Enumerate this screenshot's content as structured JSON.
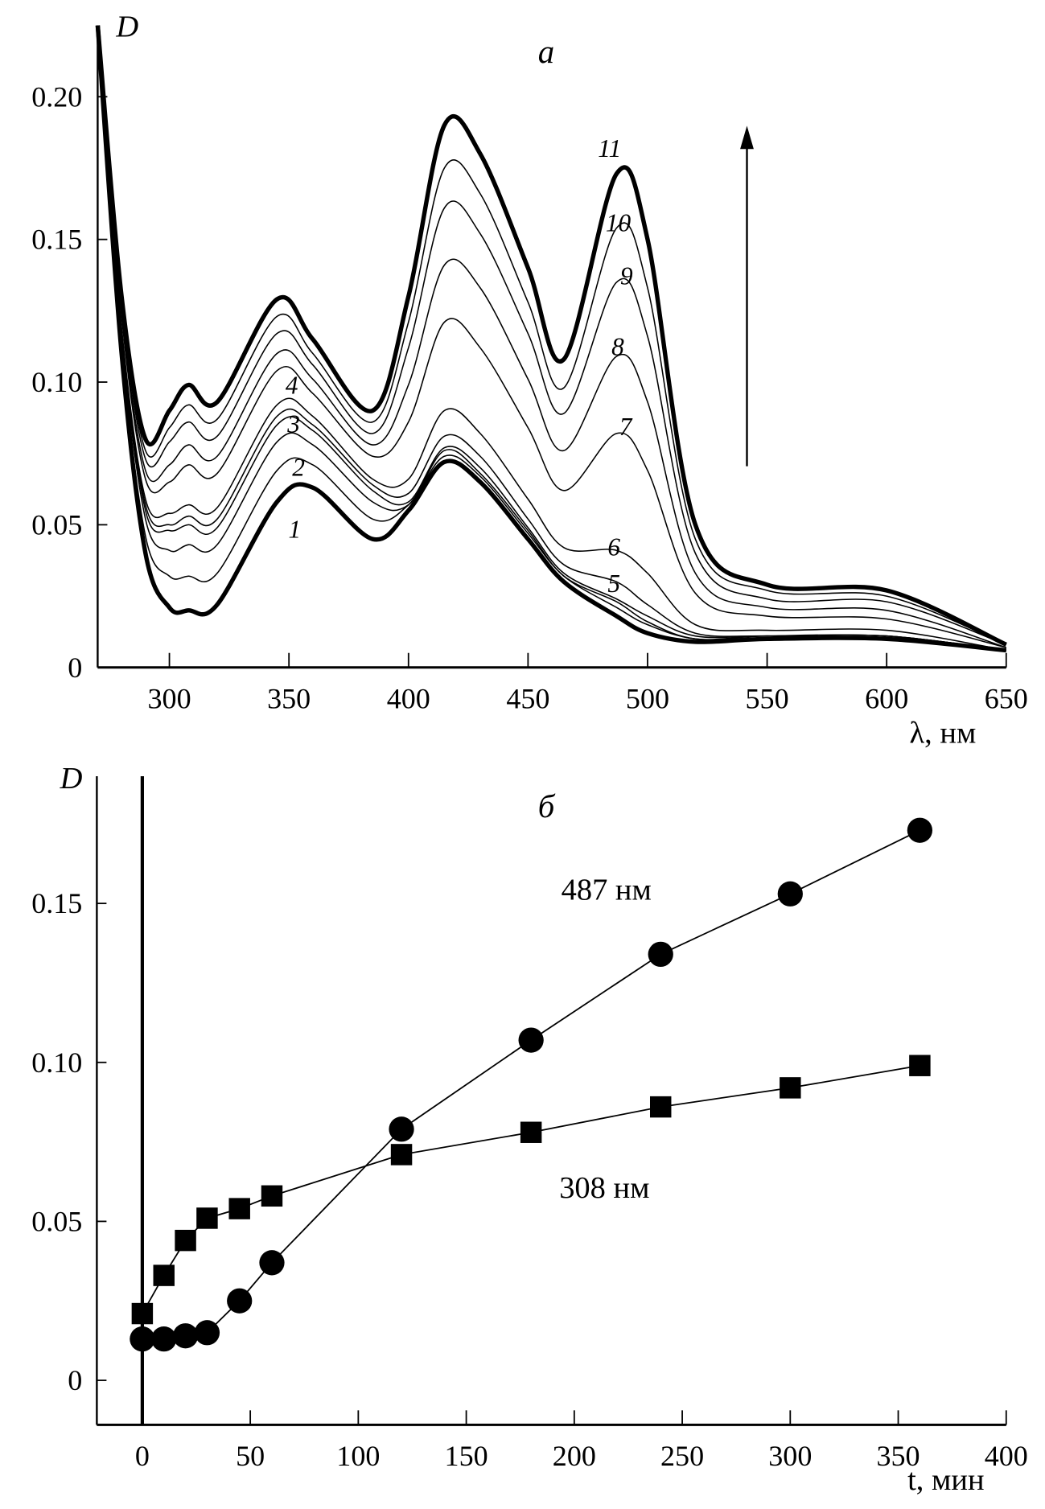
{
  "chart_data": [
    {
      "type": "line",
      "panel_label": "а",
      "ylabel": "D",
      "xlabel": "λ, нм",
      "xlim": [
        270,
        650
      ],
      "ylim": [
        0,
        0.225
      ],
      "x_ticks": [
        "300",
        "350",
        "400",
        "450",
        "500",
        "550",
        "600",
        "650"
      ],
      "y_ticks": [
        "0",
        "0.05",
        "0.10",
        "0.15",
        "0.20"
      ],
      "grid": false,
      "arrow": "up",
      "x": [
        270,
        280,
        290,
        300,
        308,
        320,
        345,
        360,
        385,
        400,
        415,
        430,
        450,
        465,
        487,
        500,
        520,
        550,
        600,
        650
      ],
      "series": [
        {
          "name": "1",
          "values": [
            0.225,
            0.11,
            0.04,
            0.021,
            0.02,
            0.022,
            0.058,
            0.063,
            0.045,
            0.055,
            0.072,
            0.065,
            0.045,
            0.03,
            0.018,
            0.012,
            0.009,
            0.01,
            0.01,
            0.006
          ]
        },
        {
          "name": "2",
          "values": [
            0.225,
            0.113,
            0.046,
            0.032,
            0.032,
            0.033,
            0.069,
            0.071,
            0.052,
            0.057,
            0.074,
            0.067,
            0.047,
            0.032,
            0.021,
            0.015,
            0.01,
            0.01,
            0.01,
            0.006
          ]
        },
        {
          "name": "3",
          "values": [
            0.225,
            0.116,
            0.052,
            0.041,
            0.043,
            0.043,
            0.079,
            0.078,
            0.058,
            0.057,
            0.076,
            0.068,
            0.048,
            0.032,
            0.023,
            0.016,
            0.01,
            0.011,
            0.011,
            0.006
          ]
        },
        {
          "name": "4",
          "values": [
            0.225,
            0.118,
            0.055,
            0.048,
            0.05,
            0.049,
            0.085,
            0.083,
            0.062,
            0.058,
            0.077,
            0.07,
            0.049,
            0.033,
            0.024,
            0.018,
            0.011,
            0.011,
            0.011,
            0.006
          ]
        },
        {
          "name": "5",
          "values": [
            0.225,
            0.118,
            0.057,
            0.05,
            0.053,
            0.052,
            0.088,
            0.085,
            0.064,
            0.061,
            0.081,
            0.074,
            0.052,
            0.036,
            0.03,
            0.022,
            0.012,
            0.011,
            0.011,
            0.006
          ]
        },
        {
          "name": "6",
          "values": [
            0.225,
            0.119,
            0.059,
            0.054,
            0.057,
            0.056,
            0.092,
            0.088,
            0.066,
            0.066,
            0.09,
            0.082,
            0.059,
            0.042,
            0.041,
            0.033,
            0.015,
            0.013,
            0.013,
            0.006
          ]
        },
        {
          "name": "7",
          "values": [
            0.225,
            0.123,
            0.066,
            0.065,
            0.071,
            0.068,
            0.104,
            0.096,
            0.074,
            0.086,
            0.121,
            0.112,
            0.084,
            0.062,
            0.082,
            0.069,
            0.026,
            0.018,
            0.017,
            0.007
          ]
        },
        {
          "name": "8",
          "values": [
            0.225,
            0.125,
            0.069,
            0.071,
            0.078,
            0.074,
            0.11,
            0.101,
            0.078,
            0.099,
            0.141,
            0.133,
            0.101,
            0.076,
            0.109,
            0.093,
            0.033,
            0.021,
            0.02,
            0.007
          ]
        },
        {
          "name": "9",
          "values": [
            0.225,
            0.127,
            0.073,
            0.079,
            0.086,
            0.081,
            0.117,
            0.106,
            0.082,
            0.112,
            0.161,
            0.152,
            0.117,
            0.089,
            0.135,
            0.116,
            0.04,
            0.024,
            0.023,
            0.008
          ]
        },
        {
          "name": "10",
          "values": [
            0.225,
            0.128,
            0.076,
            0.084,
            0.092,
            0.087,
            0.123,
            0.11,
            0.086,
            0.121,
            0.175,
            0.166,
            0.128,
            0.098,
            0.154,
            0.133,
            0.045,
            0.027,
            0.025,
            0.008
          ]
        },
        {
          "name": "11",
          "values": [
            0.225,
            0.13,
            0.08,
            0.09,
            0.099,
            0.093,
            0.129,
            0.115,
            0.09,
            0.13,
            0.19,
            0.18,
            0.14,
            0.108,
            0.173,
            0.15,
            0.05,
            0.029,
            0.027,
            0.008
          ]
        }
      ]
    },
    {
      "type": "scatter",
      "panel_label": "б",
      "ylabel": "D",
      "xlabel": "t, мин",
      "xlim": [
        -21,
        400
      ],
      "ylim": [
        -0.014,
        0.19
      ],
      "x_ticks": [
        "0",
        "50",
        "100",
        "150",
        "200",
        "250",
        "300",
        "350",
        "400"
      ],
      "y_ticks": [
        "0",
        "0.05",
        "0.10",
        "0.15"
      ],
      "grid": false,
      "x": [
        0,
        10,
        20,
        30,
        45,
        60,
        120,
        180,
        240,
        300,
        360
      ],
      "series": [
        {
          "name": "487 нм",
          "marker": "circle",
          "values": [
            0.013,
            0.013,
            0.014,
            0.015,
            0.025,
            0.037,
            0.079,
            0.107,
            0.134,
            0.153,
            0.173
          ]
        },
        {
          "name": "308 нм",
          "marker": "square",
          "values": [
            0.021,
            0.033,
            0.044,
            0.051,
            0.054,
            0.058,
            0.071,
            0.078,
            0.086,
            0.092,
            0.099
          ]
        }
      ]
    }
  ]
}
